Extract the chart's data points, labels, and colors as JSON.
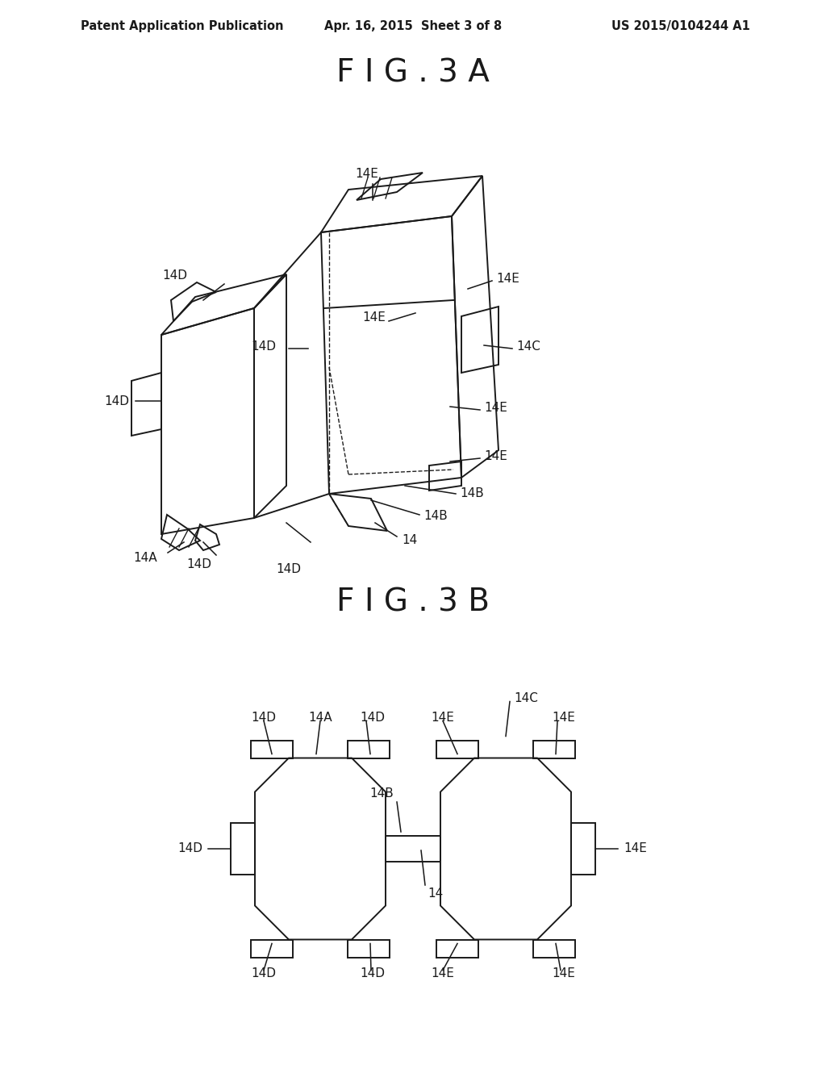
{
  "background_color": "#ffffff",
  "header_left": "Patent Application Publication",
  "header_center": "Apr. 16, 2015  Sheet 3 of 8",
  "header_right": "US 2015/0104244 A1",
  "fig3a_title": "F I G . 3 A",
  "fig3b_title": "F I G . 3 B",
  "line_color": "#1a1a1a",
  "label_color": "#1a1a1a",
  "label_fontsize": 11,
  "header_fontsize": 10.5,
  "title_fontsize": 28
}
